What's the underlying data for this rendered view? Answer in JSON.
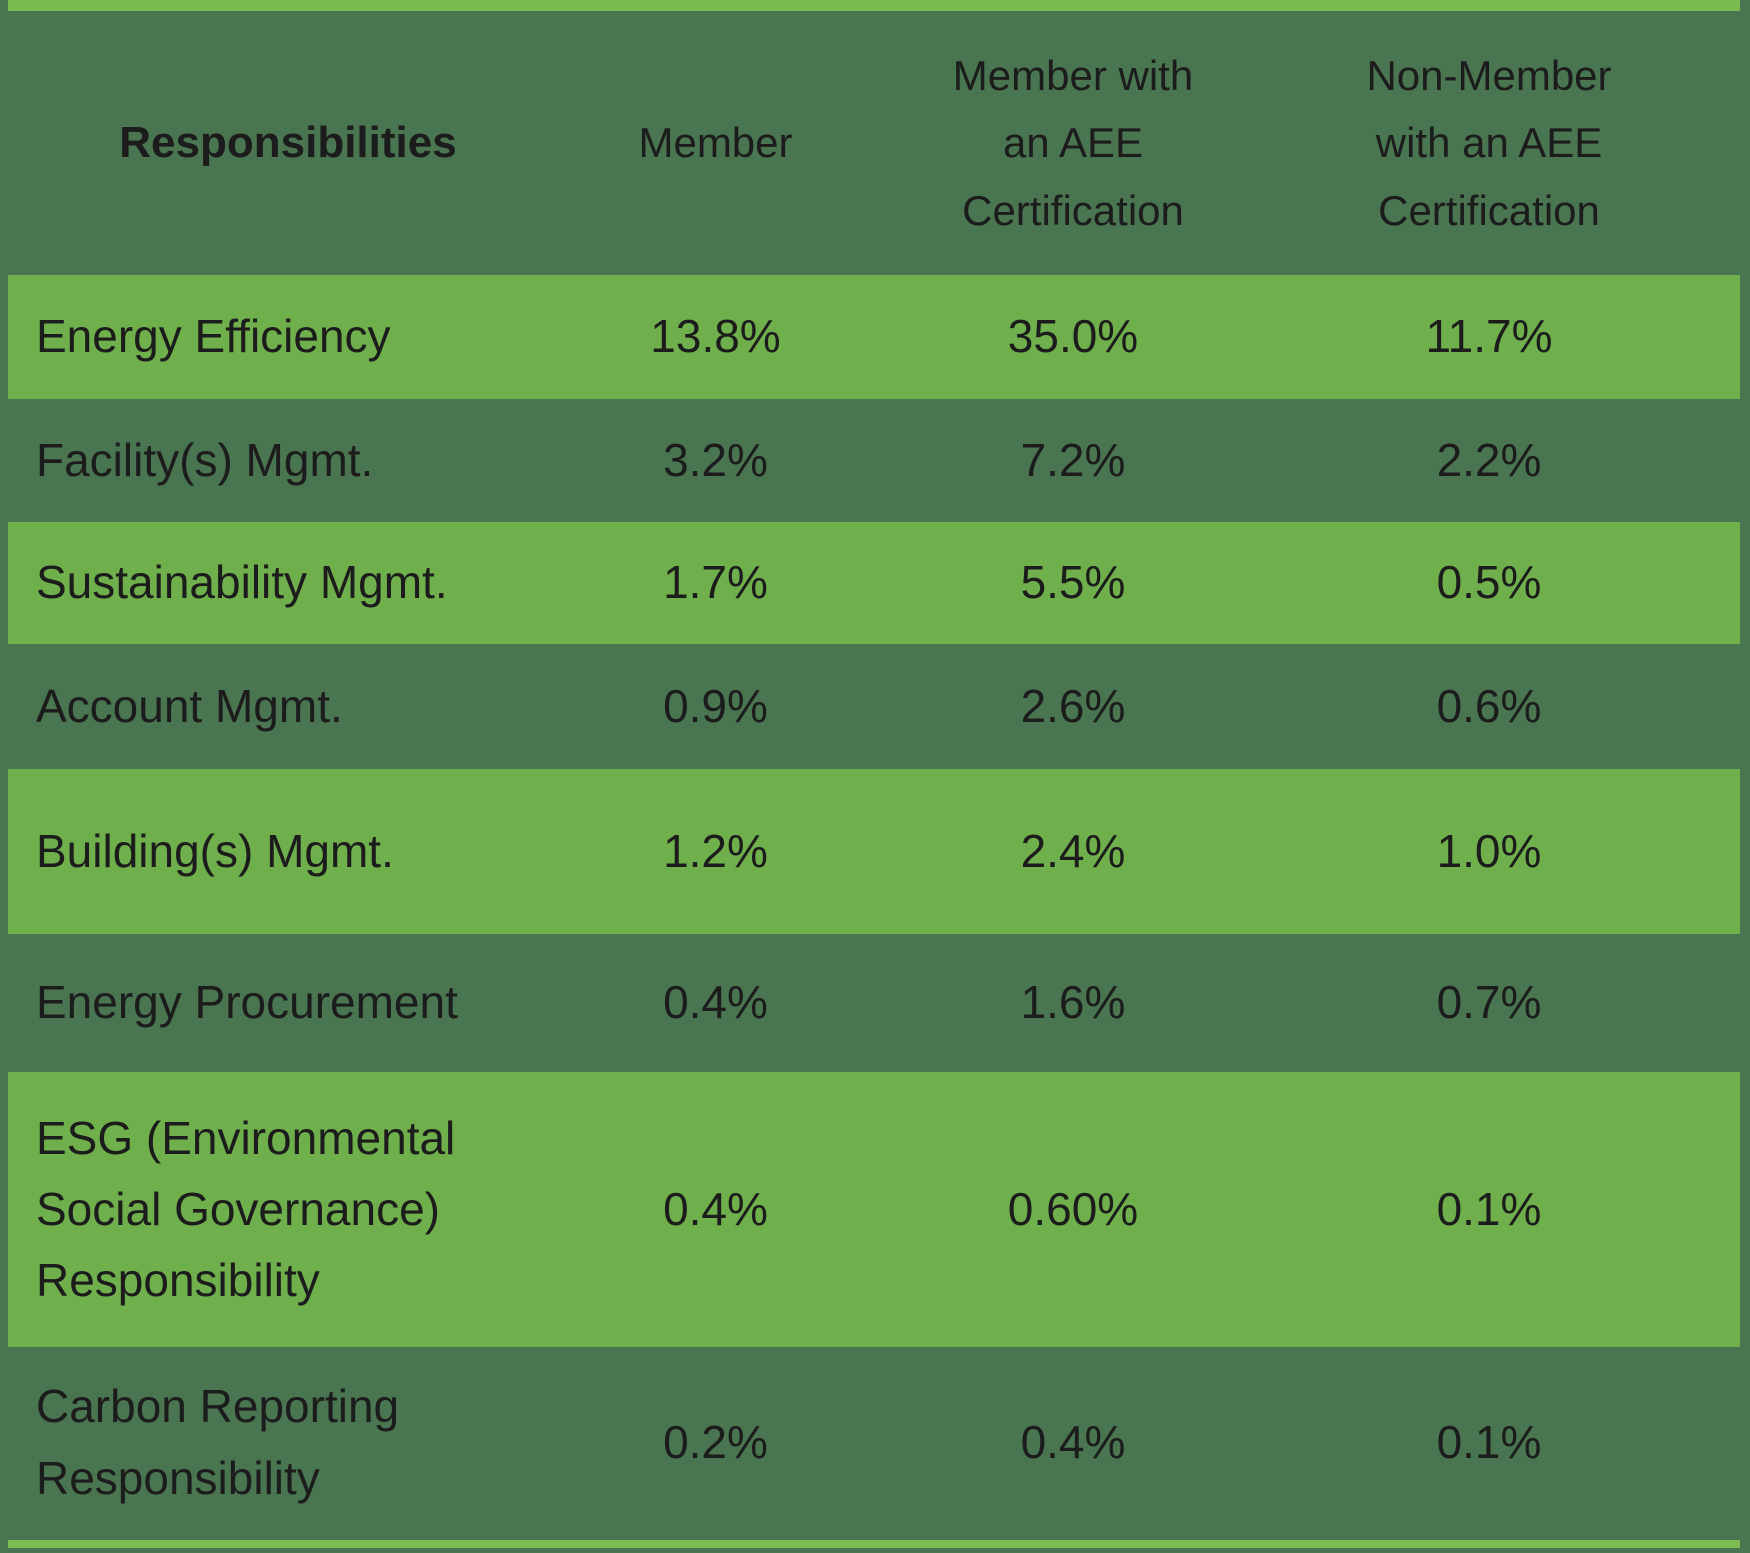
{
  "table": {
    "colors": {
      "background": "#4a7551",
      "row_highlight": "#6fb04c",
      "border_line": "#7cba52",
      "text": "#1c1c1c"
    },
    "columns": [
      {
        "id": "responsibility",
        "label": "Responsibilities"
      },
      {
        "id": "member",
        "label": "Member"
      },
      {
        "id": "member_cert",
        "label": "Member with\nan AEE\nCertification"
      },
      {
        "id": "nonmember_cert",
        "label": "Non-Member\nwith an AEE\nCertification"
      }
    ],
    "rows": [
      {
        "responsibility": "Energy Efficiency",
        "member": "13.8%",
        "member_cert": "35.0%",
        "nonmember_cert": "11.7%",
        "highlighted": true
      },
      {
        "responsibility": "Facility(s) Mgmt.",
        "member": "3.2%",
        "member_cert": "7.2%",
        "nonmember_cert": "2.2%",
        "highlighted": false
      },
      {
        "responsibility": "Sustainability Mgmt.",
        "member": "1.7%",
        "member_cert": "5.5%",
        "nonmember_cert": "0.5%",
        "highlighted": true
      },
      {
        "responsibility": "Account Mgmt.",
        "member": "0.9%",
        "member_cert": "2.6%",
        "nonmember_cert": "0.6%",
        "highlighted": false
      },
      {
        "responsibility": "Building(s) Mgmt.",
        "member": "1.2%",
        "member_cert": "2.4%",
        "nonmember_cert": "1.0%",
        "highlighted": true
      },
      {
        "responsibility": "Energy Procurement",
        "member": "0.4%",
        "member_cert": "1.6%",
        "nonmember_cert": "0.7%",
        "highlighted": false
      },
      {
        "responsibility": "ESG (Environmental\nSocial Governance)\nResponsibility",
        "member": "0.4%",
        "member_cert": "0.60%",
        "nonmember_cert": "0.1%",
        "highlighted": true
      },
      {
        "responsibility": "Carbon Reporting\nResponsibility",
        "member": "0.2%",
        "member_cert": "0.4%",
        "nonmember_cert": "0.1%",
        "highlighted": false
      }
    ]
  },
  "chart_data": {
    "type": "table",
    "row_label_header": "Responsibilities",
    "categories": [
      "Energy Efficiency",
      "Facility(s) Mgmt.",
      "Sustainability Mgmt.",
      "Account Mgmt.",
      "Building(s) Mgmt.",
      "Energy Procurement",
      "ESG (Environmental Social Governance) Responsibility",
      "Carbon Reporting Responsibility"
    ],
    "series": [
      {
        "name": "Member",
        "values": [
          13.8,
          3.2,
          1.7,
          0.9,
          1.2,
          0.4,
          0.4,
          0.2
        ]
      },
      {
        "name": "Member with an AEE Certification",
        "values": [
          35.0,
          7.2,
          5.5,
          2.6,
          2.4,
          1.6,
          0.6,
          0.4
        ]
      },
      {
        "name": "Non-Member with an AEE Certification",
        "values": [
          11.7,
          2.2,
          0.5,
          0.6,
          1.0,
          0.7,
          0.1,
          0.1
        ]
      }
    ],
    "unit": "%",
    "layout": {
      "zebra_highlight_rows": [
        1,
        3,
        5,
        7,
        8
      ],
      "highlight_color": "#6fb04c",
      "background_color": "#4a7551"
    }
  }
}
